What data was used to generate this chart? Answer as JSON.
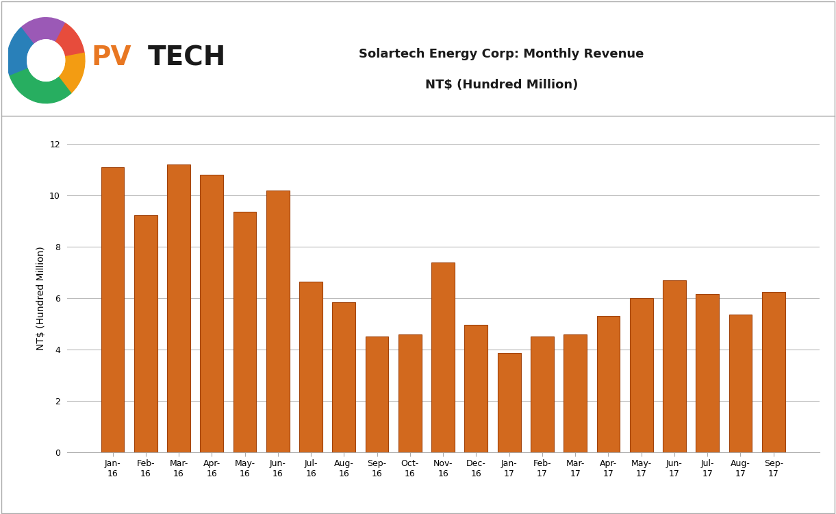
{
  "title_line1": "Solartech Energy Corp: Monthly Revenue",
  "title_line2": "NT$ (Hundred Million)",
  "ylabel": "NT$ (Hundred Million)",
  "categories": [
    "Jan-\n16",
    "Feb-\n16",
    "Mar-\n16",
    "Apr-\n16",
    "May-\n16",
    "Jun-\n16",
    "Jul-\n16",
    "Aug-\n16",
    "Sep-\n16",
    "Oct-\n16",
    "Nov-\n16",
    "Dec-\n16",
    "Jan-\n17",
    "Feb-\n17",
    "Mar-\n17",
    "Apr-\n17",
    "May-\n17",
    "Jun-\n17",
    "Jul-\n17",
    "Aug-\n17",
    "Sep-\n17"
  ],
  "values": [
    11.1,
    9.22,
    11.2,
    10.8,
    9.35,
    10.2,
    6.65,
    5.83,
    4.5,
    4.6,
    7.4,
    4.97,
    3.88,
    4.5,
    4.6,
    5.3,
    5.99,
    6.7,
    6.17,
    5.35,
    6.23
  ],
  "bar_color": "#D2691E",
  "bar_edge_color": "#A0420A",
  "ylim": [
    0,
    12
  ],
  "yticks": [
    0,
    2,
    4,
    6,
    8,
    10,
    12
  ],
  "background_color": "#FFFFFF",
  "plot_bg_color": "#FFFFFF",
  "grid_color": "#BBBBBB",
  "title_fontsize": 13,
  "axis_label_fontsize": 10,
  "tick_fontsize": 9,
  "border_color": "#AAAAAA"
}
